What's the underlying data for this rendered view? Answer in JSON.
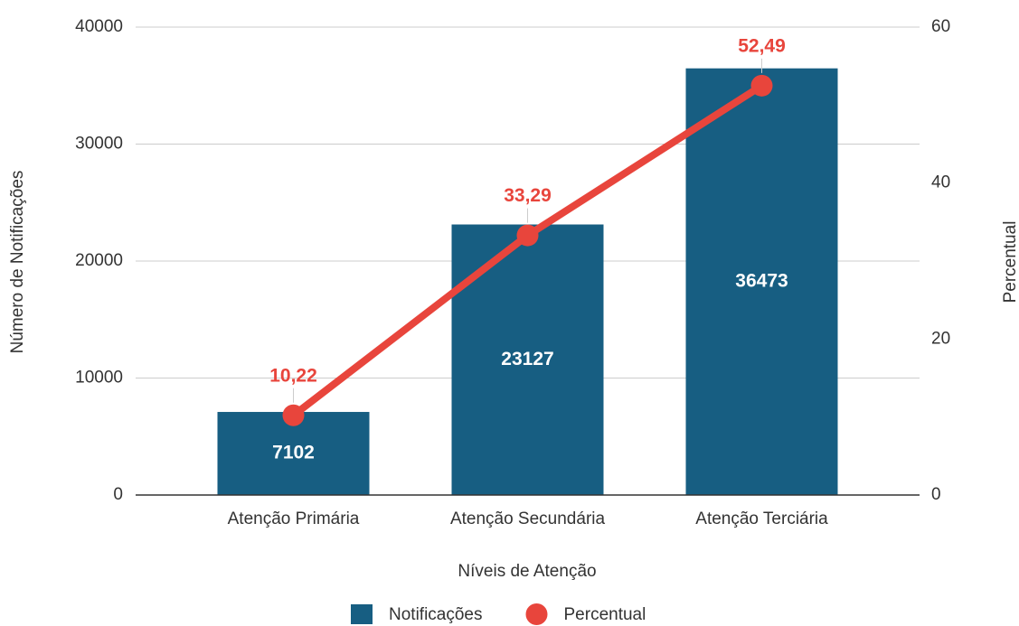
{
  "chart_data": {
    "type": "combo",
    "x_label": "Níveis de Atenção",
    "y_label": "Número de Notificações",
    "y2_label": "Percentual",
    "categories": [
      "Atenção Primária",
      "Atenção Secundária",
      "Atenção Terciária"
    ],
    "series": [
      {
        "name": "Notificações",
        "type": "bar",
        "color": "#175e82",
        "values": [
          7102,
          23127,
          36473
        ]
      },
      {
        "name": "Percentual",
        "type": "line",
        "axis": "y2",
        "color": "#e8453c",
        "values": [
          10.22,
          33.29,
          52.49
        ],
        "value_labels": [
          "10,22",
          "33,29",
          "52,49"
        ]
      }
    ],
    "ylim": [
      0,
      40000
    ],
    "yticks": [
      0,
      10000,
      20000,
      30000,
      40000
    ],
    "y2lim": [
      0,
      60
    ],
    "y2ticks": [
      0,
      20,
      40,
      60
    ],
    "grid": true,
    "legend": "bottom"
  }
}
